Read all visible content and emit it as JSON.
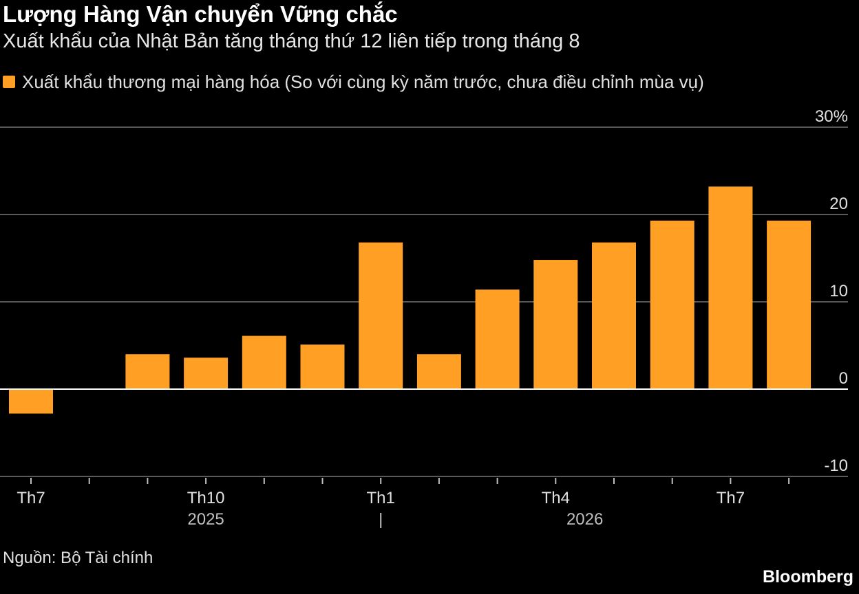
{
  "header": {
    "title": "Lượng Hàng Vận chuyển Vững chắc",
    "subtitle": "Xuất khẩu của Nhật Bản tăng tháng thứ 12 liên tiếp trong tháng 8"
  },
  "legend": {
    "label": "Xuất khẩu thương mại hàng hóa (So với cùng kỳ năm trước, chưa điều chỉnh mùa vụ)"
  },
  "colors": {
    "bar": "#FF9F24",
    "background": "#000000",
    "grid": "#5a5a5a",
    "text": "#e0e0e0"
  },
  "footer": {
    "source": "Nguồn: Bộ Tài chính",
    "brand": "Bloomberg"
  },
  "chart_data": {
    "type": "bar",
    "categories": [
      "2025-07",
      "2025-08",
      "2025-09",
      "2025-10",
      "2025-11",
      "2025-12",
      "2026-01",
      "2026-02",
      "2026-03",
      "2026-04",
      "2026-05",
      "2026-06",
      "2026-07",
      "2026-08"
    ],
    "values": [
      -2.8,
      0,
      4,
      3.6,
      6.1,
      5.1,
      16.8,
      4,
      11.4,
      14.8,
      16.8,
      19.3,
      23.2,
      19.3
    ],
    "x_tick_labels": [
      {
        "index": 0,
        "label": "Th7"
      },
      {
        "index": 3,
        "label": "Th10"
      },
      {
        "index": 6,
        "label": "Th1"
      },
      {
        "index": 9,
        "label": "Th4"
      },
      {
        "index": 12,
        "label": "Th7"
      }
    ],
    "year_labels": [
      {
        "center_index": 3,
        "label": "2025"
      },
      {
        "center_index": 9.5,
        "label": "2026"
      }
    ],
    "year_divider_index": 6,
    "y_ticks": [
      {
        "value": 30,
        "label": "30%"
      },
      {
        "value": 20,
        "label": "20"
      },
      {
        "value": 10,
        "label": "10"
      },
      {
        "value": 0,
        "label": "0"
      },
      {
        "value": -10,
        "label": "-10"
      }
    ],
    "ylim": [
      -10,
      30
    ],
    "grid": true
  }
}
